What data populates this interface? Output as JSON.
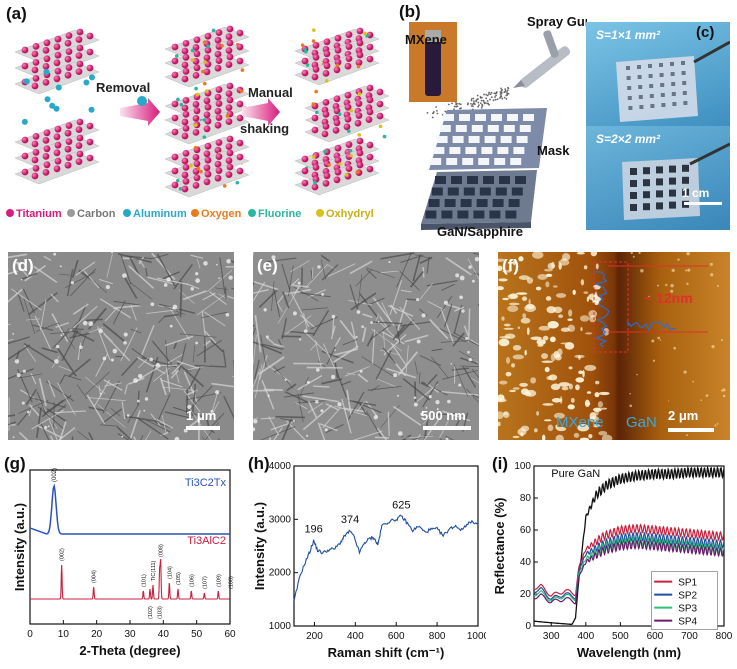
{
  "panel_labels": {
    "a": "(a)",
    "b": "(b)",
    "c": "(c)",
    "d": "(d)",
    "e": "(e)",
    "f": "(f)",
    "g": "(g)",
    "h": "(h)",
    "i": "(i)"
  },
  "panel_a": {
    "removal": "Removal",
    "manual": "Manual",
    "shaking": "shaking",
    "legend": [
      {
        "label": "Titanium",
        "color": "#d81b7c"
      },
      {
        "label": "Carbon",
        "color": "#9a9a9a"
      },
      {
        "label": "Aluminum",
        "color": "#2aa8c8"
      },
      {
        "label": "Oxygen",
        "color": "#ec7a1c"
      },
      {
        "label": "Fluorine",
        "color": "#2bb5a0"
      },
      {
        "label": "Oxhydryl",
        "color": "#d8c21a"
      }
    ]
  },
  "panel_b": {
    "mxene": "MXene",
    "spray_gun": "Spray Gun",
    "mask": "Mask",
    "substrate": "GaN/Sapphire"
  },
  "panel_c": {
    "s1": "S=1×1 mm²",
    "s2": "S=2×2 mm²",
    "scale": "1 cm"
  },
  "panel_d": {
    "scale": "1 μm"
  },
  "panel_e": {
    "scale": "500 nm"
  },
  "panel_f": {
    "height": "~ 12nm",
    "left_region": "MXene",
    "right_region": "GaN",
    "scale": "2 μm"
  },
  "chart_data": [
    {
      "type": "line",
      "panel": "g",
      "xlabel": "2-Theta (degree)",
      "ylabel": "Intensity (a.u.)",
      "xlim": [
        0,
        60
      ],
      "xticks": [
        0,
        10,
        20,
        30,
        40,
        50,
        60
      ],
      "series": [
        {
          "name": "Ti3C2Tx",
          "color": "#2a52be",
          "peaks": [
            {
              "x": 7.2,
              "label": "(002)"
            }
          ]
        },
        {
          "name": "Ti3AlC2",
          "color": "#c8203c",
          "peaks": [
            {
              "x": 9.5,
              "label": "(002)"
            },
            {
              "x": 19.1,
              "label": "(004)"
            },
            {
              "x": 34.0,
              "label": "(101)"
            },
            {
              "x": 36.0,
              "label": "(102)"
            },
            {
              "x": 36.9,
              "label": "TiC(111)"
            },
            {
              "x": 38.9,
              "label": "(103)"
            },
            {
              "x": 39.2,
              "label": "(008)"
            },
            {
              "x": 41.8,
              "label": "(104)"
            },
            {
              "x": 44.4,
              "label": "(105)"
            },
            {
              "x": 48.4,
              "label": "(106)"
            },
            {
              "x": 52.3,
              "label": "(107)"
            },
            {
              "x": 56.5,
              "label": "(109)"
            },
            {
              "x": 60.2,
              "label": "(108)"
            }
          ]
        }
      ]
    },
    {
      "type": "line",
      "panel": "h",
      "xlabel": "Raman shift (cm⁻¹)",
      "ylabel": "Intensity (a.u.)",
      "xlim": [
        100,
        1000
      ],
      "ylim": [
        1000,
        4000
      ],
      "xticks": [
        200,
        400,
        600,
        800,
        1000
      ],
      "yticks": [
        1000,
        2000,
        3000,
        4000
      ],
      "peak_labels": [
        {
          "x": 196,
          "y": 2600,
          "label": "196"
        },
        {
          "x": 374,
          "y": 2780,
          "label": "374"
        },
        {
          "x": 625,
          "y": 3050,
          "label": "625"
        }
      ],
      "x": [
        100,
        130,
        160,
        180,
        196,
        215,
        240,
        270,
        300,
        330,
        350,
        374,
        395,
        420,
        445,
        470,
        490,
        510,
        530,
        560,
        600,
        625,
        650,
        680,
        710,
        740,
        770,
        800,
        830,
        860,
        890,
        920,
        950,
        980,
        1000
      ],
      "y": [
        1460,
        1950,
        2240,
        2420,
        2600,
        2420,
        2370,
        2430,
        2450,
        2580,
        2700,
        2780,
        2660,
        2380,
        2560,
        2640,
        2660,
        2520,
        2880,
        2950,
        3000,
        3060,
        2950,
        2790,
        2870,
        2760,
        2810,
        2820,
        2690,
        2820,
        2880,
        2800,
        2930,
        2950,
        2900
      ]
    },
    {
      "type": "line",
      "panel": "i",
      "xlabel": "Wavelength (nm)",
      "ylabel": "Reflectance (%)",
      "xlim": [
        250,
        800
      ],
      "ylim": [
        0,
        100
      ],
      "xticks": [
        300,
        400,
        500,
        600,
        700,
        800
      ],
      "yticks": [
        0,
        20,
        40,
        60,
        80,
        100
      ],
      "annotation": "Pure GaN",
      "series": [
        {
          "name": "Pure GaN",
          "color": "#111111",
          "x": [
            250,
            300,
            360,
            370,
            380,
            400,
            430,
            460,
            500,
            550,
            600,
            650,
            700,
            750,
            800
          ],
          "y": [
            3,
            2,
            1,
            5,
            30,
            68,
            82,
            88,
            92,
            94,
            95,
            95,
            96,
            96,
            96
          ]
        },
        {
          "name": "SP1",
          "color": "#c8203c",
          "x": [
            250,
            270,
            300,
            340,
            360,
            370,
            380,
            400,
            450,
            500,
            550,
            600,
            650,
            700,
            750,
            800
          ],
          "y": [
            24,
            25,
            19,
            22,
            21,
            20,
            37,
            48,
            56,
            60,
            61,
            60,
            59,
            58,
            57,
            56
          ]
        },
        {
          "name": "SP2",
          "color": "#1f4fa0",
          "x": [
            250,
            270,
            300,
            340,
            360,
            370,
            380,
            400,
            450,
            500,
            550,
            600,
            650,
            700,
            750,
            800
          ],
          "y": [
            22,
            23,
            17,
            20,
            19,
            18,
            35,
            45,
            51,
            55,
            56,
            55,
            54,
            53,
            52,
            51
          ]
        },
        {
          "name": "SP3",
          "color": "#2dc07a",
          "x": [
            250,
            270,
            300,
            340,
            360,
            370,
            380,
            400,
            450,
            500,
            550,
            600,
            650,
            700,
            750,
            800
          ],
          "y": [
            20,
            21,
            16,
            19,
            18,
            17,
            33,
            42,
            49,
            52,
            53,
            52,
            51,
            50,
            49,
            48
          ]
        },
        {
          "name": "SP4",
          "color": "#6a1b6a",
          "x": [
            250,
            270,
            300,
            340,
            360,
            370,
            380,
            400,
            450,
            500,
            550,
            600,
            650,
            700,
            750,
            800
          ],
          "y": [
            18,
            19,
            15,
            17,
            16,
            15,
            31,
            40,
            47,
            50,
            51,
            50,
            49,
            48,
            47,
            46
          ]
        }
      ]
    }
  ]
}
